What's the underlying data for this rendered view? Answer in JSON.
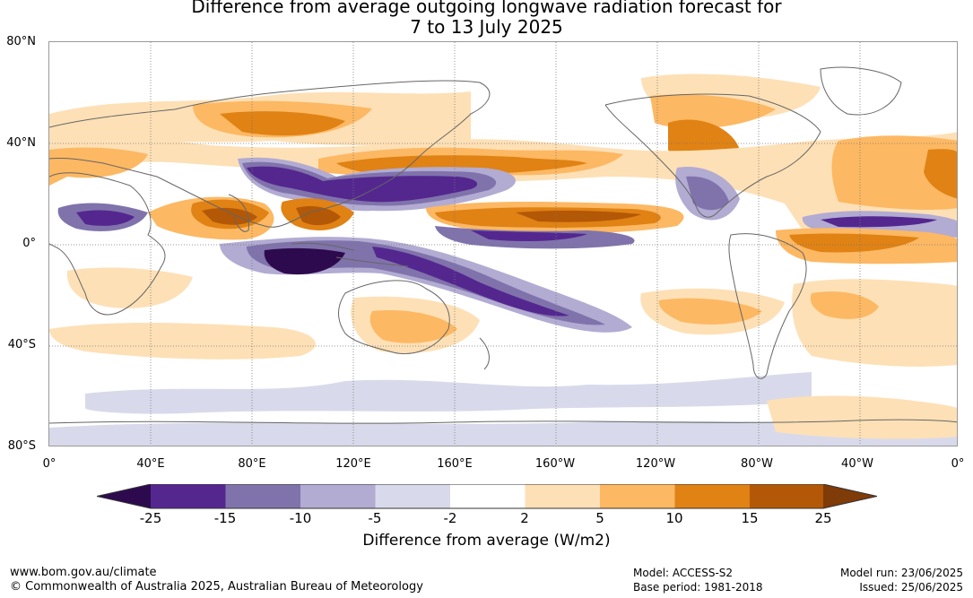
{
  "title_line1": "Difference from average outgoing longwave radiation forecast for",
  "title_line2": "7 to 13 July 2025",
  "lat_labels": [
    "80°N",
    "40°N",
    "0°",
    "40°S",
    "80°S"
  ],
  "lon_labels": [
    "0°",
    "40°E",
    "80°E",
    "120°E",
    "160°E",
    "160°W",
    "120°W",
    "80°W",
    "40°W",
    "0°"
  ],
  "colorbar": {
    "labels": [
      "-25",
      "-15",
      "-10",
      "-5",
      "-2",
      "2",
      "5",
      "10",
      "15",
      "25"
    ],
    "colors": [
      "#2d0a4e",
      "#54278f",
      "#8073ac",
      "#b2abd2",
      "#d8daeb",
      "#ffffff",
      "#fee0b6",
      "#fdb863",
      "#e08214",
      "#b35806",
      "#7f3b08"
    ],
    "title": "Difference from average (W/m2)"
  },
  "footer": {
    "url": "www.bom.gov.au/climate",
    "copyright": "© Commonwealth of Australia 2025, Australian Bureau of Meteorology",
    "model": "Model: ACCESS-S2",
    "base_period": "Base period: 1981-2018",
    "model_run": "Model run: 23/06/2025",
    "issued": "Issued: 25/06/2025"
  }
}
